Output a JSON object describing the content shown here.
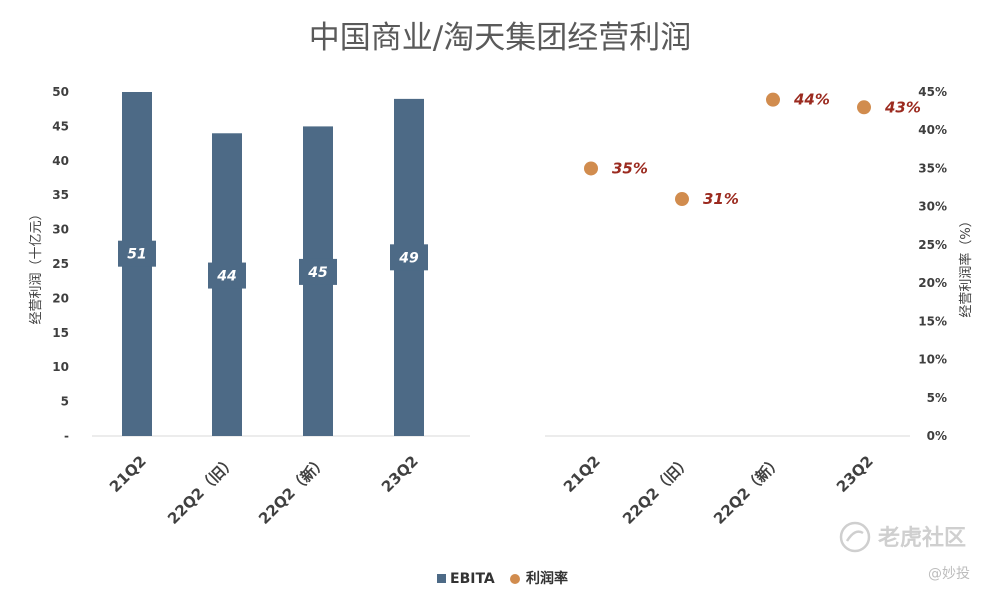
{
  "title": "中国商业/淘天集团经营利润",
  "watermark": {
    "brand": "老虎社区",
    "sub": "@妙投"
  },
  "colors": {
    "bar": "#4d6a86",
    "dot": "#d18c4e",
    "label": "#9b2a1f"
  },
  "chart_data": [
    {
      "type": "bar",
      "categories": [
        "21Q2",
        "22Q2（旧）",
        "22Q2（新）",
        "23Q2"
      ],
      "series": [
        {
          "name": "EBITA",
          "values": [
            51,
            44,
            45,
            49
          ]
        }
      ],
      "data_labels": [
        "51",
        "44",
        "45",
        "49"
      ],
      "ylabel": "经营利润（十亿元）",
      "ylim": [
        0,
        50
      ],
      "yticks": [
        "-",
        "5",
        "10",
        "15",
        "20",
        "25",
        "30",
        "35",
        "40",
        "45",
        "50"
      ]
    },
    {
      "type": "scatter",
      "categories": [
        "21Q2",
        "22Q2（旧）",
        "22Q2（新）",
        "23Q2"
      ],
      "series": [
        {
          "name": "利润率",
          "values": [
            35,
            31,
            44,
            43
          ]
        }
      ],
      "data_labels": [
        "35%",
        "31%",
        "44%",
        "43%"
      ],
      "ylabel": "经营利润率（%）",
      "ylim": [
        0,
        45
      ],
      "yticks": [
        "0%",
        "5%",
        "10%",
        "15%",
        "20%",
        "25%",
        "30%",
        "35%",
        "40%",
        "45%"
      ]
    }
  ],
  "legend": [
    {
      "label": "EBITA",
      "shape": "square"
    },
    {
      "label": "利润率",
      "shape": "circle"
    }
  ]
}
